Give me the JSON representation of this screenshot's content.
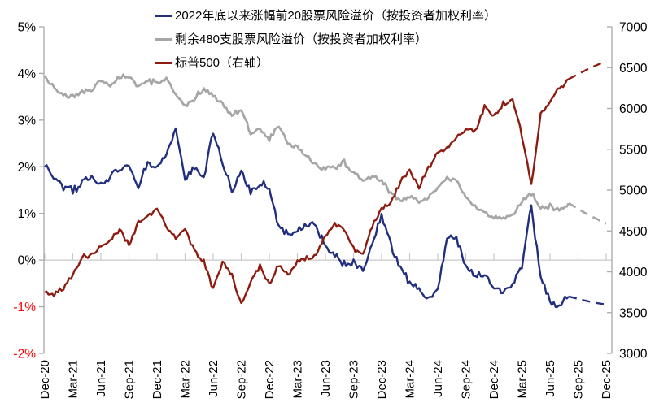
{
  "chart_data": {
    "type": "line",
    "title": "",
    "legend_position": "top",
    "grid": "horizontal-zero-line-only",
    "background": "#ffffff",
    "style": {
      "axis_color": "#adadad",
      "grid_color": "#c9c9c9",
      "text_color": "#000000",
      "negative_tick_color": "#ff0000"
    },
    "x_axis": {
      "start_month": "Dec-20",
      "end_month": "Dec-25",
      "total_months": 60,
      "tick_interval_months": 3,
      "tick_labels": [
        "Dec-20",
        "Mar-21",
        "Jun-21",
        "Sep-21",
        "Dec-21",
        "Mar-22",
        "Jun-22",
        "Sep-22",
        "Dec-22",
        "Mar-23",
        "Jun-23",
        "Sep-23",
        "Dec-23",
        "Mar-24",
        "Jun-24",
        "Sep-24",
        "Dec-24",
        "Mar-25",
        "Jun-25",
        "Sep-25",
        "Dec-25"
      ]
    },
    "y_left": {
      "min": -2,
      "max": 5,
      "unit": "%",
      "tick_values": [
        5,
        4,
        3,
        2,
        1,
        0,
        -1,
        -2
      ],
      "tick_labels": [
        "5%",
        "4%",
        "3%",
        "2%",
        "1%",
        "0%",
        "-1%",
        "-2%"
      ]
    },
    "y_right": {
      "min": 3000,
      "max": 7000,
      "tick_values": [
        7000,
        6500,
        6000,
        5500,
        5000,
        4500,
        4000,
        3500,
        3000
      ],
      "tick_labels": [
        "7000",
        "6500",
        "6000",
        "5500",
        "5000",
        "4500",
        "4000",
        "3500",
        "3000"
      ]
    },
    "forecast_start_month": 56,
    "series": [
      {
        "name": "2022年底以来涨幅前20股票风险溢价（按投资者加权利率）",
        "axis": "left",
        "color": "#222f7e",
        "unit": "%",
        "monthly_values": [
          2.0,
          1.8,
          1.55,
          1.5,
          1.65,
          1.8,
          1.6,
          1.75,
          1.95,
          2.0,
          1.6,
          2.05,
          2.0,
          2.25,
          2.8,
          1.7,
          2.0,
          1.75,
          2.75,
          2.1,
          1.45,
          1.9,
          1.4,
          1.65,
          1.55,
          0.7,
          0.55,
          0.6,
          0.8,
          0.75,
          0.25,
          0.1,
          -0.1,
          -0.05,
          -0.25,
          0.35,
          0.95,
          0.35,
          -0.2,
          -0.45,
          -0.65,
          -0.8,
          -0.6,
          0.45,
          0.5,
          -0.15,
          -0.35,
          -0.3,
          -0.55,
          -0.7,
          -0.55,
          -0.1,
          1.2,
          -0.4,
          -0.9,
          -1.0,
          -0.78
        ],
        "forecast_values": [
          -0.78,
          -0.83,
          -0.88,
          -0.92,
          -0.95
        ]
      },
      {
        "name": "剩余480支股票风险溢价（按投资者加权利率）",
        "axis": "left",
        "color": "#a6a6a6",
        "unit": "%",
        "monthly_values": [
          3.95,
          3.7,
          3.55,
          3.5,
          3.6,
          3.65,
          3.85,
          3.75,
          3.9,
          3.95,
          3.7,
          3.85,
          3.8,
          3.9,
          3.55,
          3.3,
          3.45,
          3.7,
          3.55,
          3.35,
          3.1,
          3.2,
          2.75,
          2.8,
          2.6,
          2.85,
          2.5,
          2.4,
          2.25,
          2.05,
          1.95,
          1.95,
          2.1,
          1.9,
          1.7,
          1.8,
          1.7,
          1.45,
          1.3,
          1.35,
          1.25,
          1.35,
          1.55,
          1.75,
          1.7,
          1.35,
          1.15,
          1.0,
          0.92,
          0.87,
          0.95,
          1.25,
          1.45,
          1.1,
          1.15,
          1.1,
          1.22
        ],
        "forecast_values": [
          1.22,
          1.1,
          0.98,
          0.88,
          0.78
        ]
      },
      {
        "name": "标普500（右轴）",
        "axis": "right",
        "color": "#8e1b0f",
        "unit": "index",
        "monthly_values": [
          3750,
          3715,
          3810,
          3970,
          4180,
          4200,
          4300,
          4400,
          4520,
          4310,
          4605,
          4700,
          4770,
          4550,
          4400,
          4550,
          4250,
          4120,
          3785,
          4130,
          3955,
          3585,
          3870,
          4080,
          3840,
          4075,
          3970,
          4110,
          4170,
          4180,
          4450,
          4590,
          4510,
          4290,
          4195,
          4570,
          4770,
          4845,
          5095,
          5255,
          5035,
          5275,
          5460,
          5520,
          5650,
          5760,
          5705,
          6030,
          5900,
          6060,
          6120,
          5680,
          5050,
          5910,
          6100,
          6250,
          6360
        ],
        "forecast_values": [
          6360,
          6420,
          6480,
          6530,
          6580
        ]
      }
    ]
  }
}
